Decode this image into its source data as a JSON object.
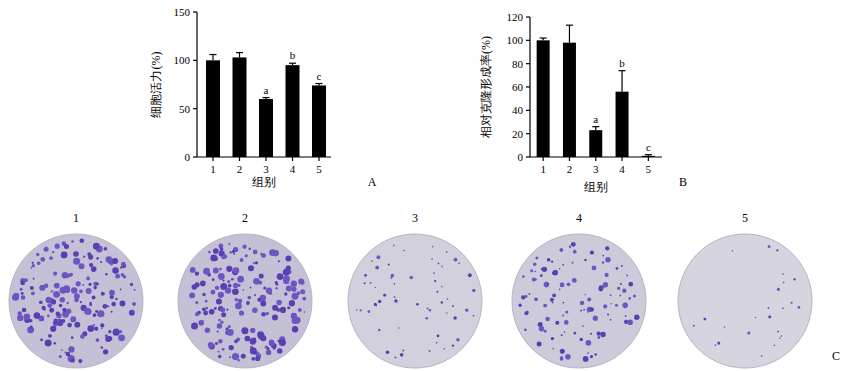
{
  "chart_data": [
    {
      "type": "bar",
      "panel": "A",
      "x_label": "组别",
      "y_label": "细胞活力(%)",
      "categories": [
        "1",
        "2",
        "3",
        "4",
        "5"
      ],
      "values": [
        100,
        103,
        60,
        95,
        74
      ],
      "errors": [
        6,
        5,
        1.5,
        2,
        2
      ],
      "letters": [
        null,
        null,
        "a",
        "b",
        "c"
      ],
      "color": "#000000",
      "ylim": [
        0,
        150
      ],
      "yticks": [
        0,
        50,
        100,
        150
      ],
      "grid": false
    },
    {
      "type": "bar",
      "panel": "B",
      "x_label": "组别",
      "y_label": "相对克隆形成率(%)",
      "categories": [
        "1",
        "2",
        "3",
        "4",
        "5"
      ],
      "values": [
        100,
        98,
        23,
        56,
        1
      ],
      "errors": [
        2,
        15,
        3,
        18,
        1
      ],
      "letters": [
        null,
        null,
        "a",
        "b",
        "c"
      ],
      "color": "#000000",
      "ylim": [
        0,
        120
      ],
      "yticks": [
        0,
        20,
        40,
        60,
        80,
        100,
        120
      ],
      "grid": false
    }
  ],
  "plates": {
    "panel": "C",
    "labels": [
      "1",
      "2",
      "3",
      "4",
      "5"
    ]
  }
}
